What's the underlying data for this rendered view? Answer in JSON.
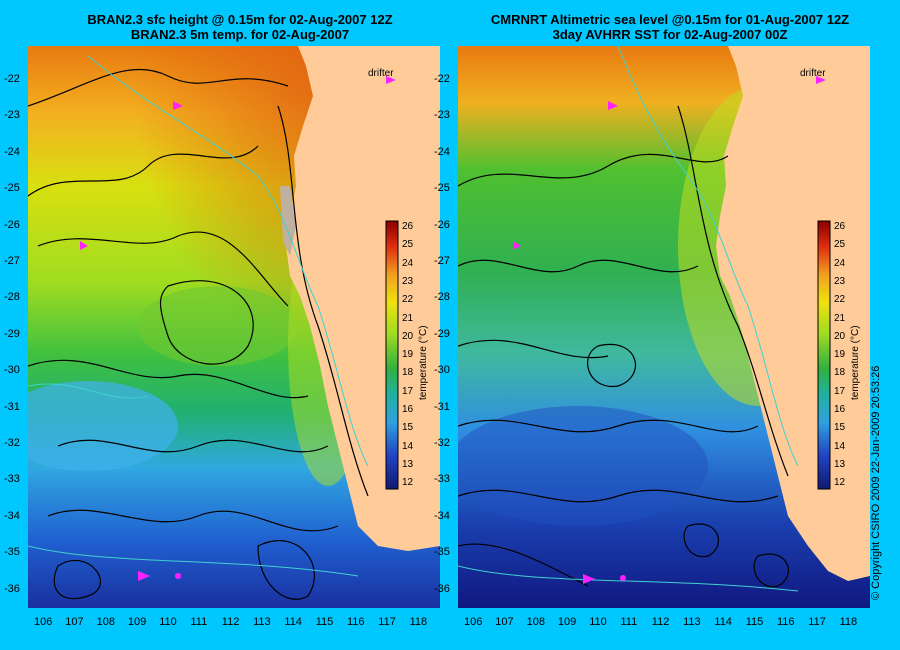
{
  "left_panel": {
    "title_line1": "BRAN2.3 sfc height @ 0.15m for 02-Aug-2007 12Z",
    "title_line2": "BRAN2.3 5m temp. for 02-Aug-2007"
  },
  "right_panel": {
    "title_line1": "CMRNRT Altimetric sea level  @0.15m  for 01-Aug-2007 12Z",
    "title_line2": "3day AVHRR SST for 02-Aug-2007 00Z"
  },
  "drifter_label": "drifter",
  "colorbar": {
    "label": "temperature (°C)",
    "ticks": [
      "26",
      "25",
      "24",
      "23",
      "22",
      "21",
      "20",
      "19",
      "18",
      "17",
      "16",
      "15",
      "14",
      "13",
      "12"
    ]
  },
  "latitudes": [
    "-22",
    "-23",
    "-24",
    "-25",
    "-26",
    "-27",
    "-28",
    "-29",
    "-30",
    "-31",
    "-32",
    "-33",
    "-34",
    "-35",
    "-36"
  ],
  "longitudes": [
    "106",
    "107",
    "108",
    "109",
    "110",
    "111",
    "112",
    "113",
    "114",
    "115",
    "116",
    "117",
    "118"
  ],
  "copyright": "© Copyright CSIRO 2009  22-Jan-2009 20:53:26",
  "colors": {
    "background": "#00c8ff",
    "land": "#ffcc99",
    "drifter": "#ff22ff",
    "contour": "#000000",
    "bathymetry": "#40d0d0"
  }
}
